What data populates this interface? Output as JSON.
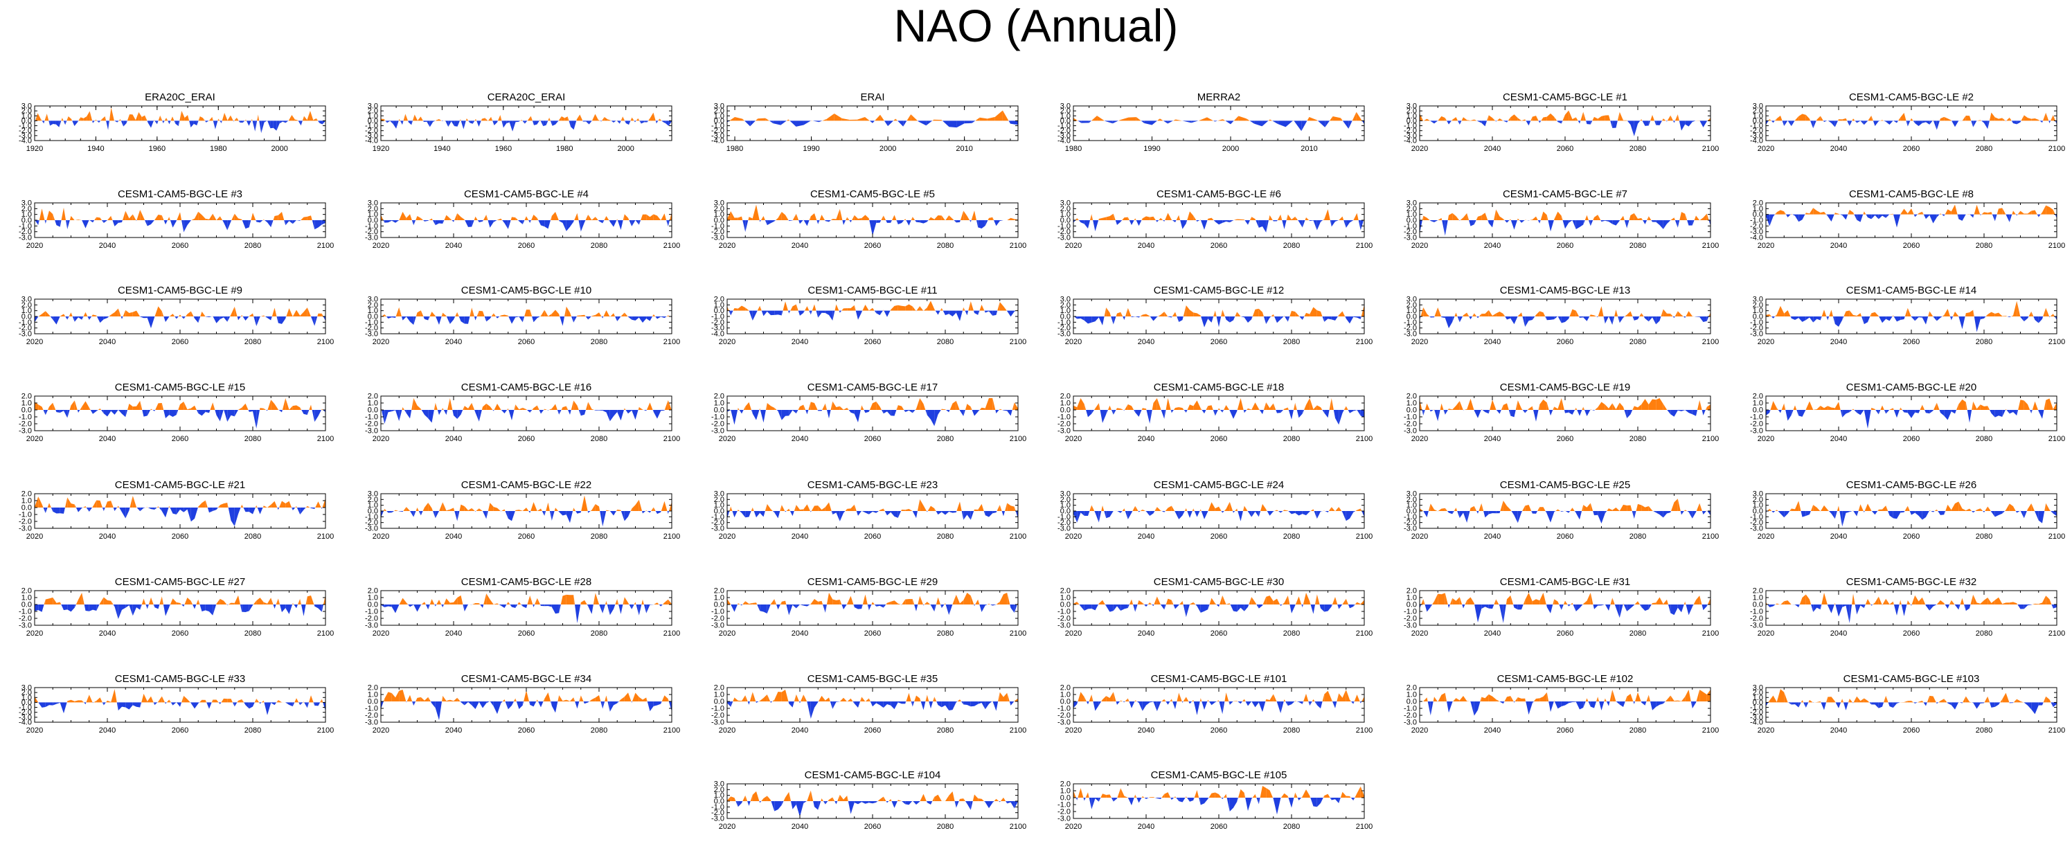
{
  "title": "NAO (Annual)",
  "colors": {
    "positive": "#ff7f0e",
    "negative": "#1f3fe0",
    "axis": "#000000"
  },
  "chart_data": {
    "type": "area",
    "title": "NAO (Annual)",
    "series_note_colors": "positive anomalies orange, negative anomalies blue",
    "panels": [
      {
        "name": "ERA20C_ERAI",
        "x0": 1920,
        "x1": 2015,
        "xticks": [
          "1920",
          "1940",
          "1960",
          "1980",
          "2000"
        ],
        "yticks": [
          "3.0",
          "2.0",
          "1.0",
          "0.0",
          "-1.0",
          "-2.0",
          "-3.0",
          "-4.0"
        ],
        "ylim": [
          -4,
          3
        ]
      },
      {
        "name": "CERA20C_ERAI",
        "x0": 1920,
        "x1": 2015,
        "xticks": [
          "1920",
          "1940",
          "1960",
          "1980",
          "2000"
        ],
        "yticks": [
          "3.0",
          "2.0",
          "1.0",
          "0.0",
          "-1.0",
          "-2.0",
          "-3.0",
          "-4.0"
        ],
        "ylim": [
          -4,
          3
        ]
      },
      {
        "name": "ERAI",
        "x0": 1979,
        "x1": 2017,
        "xticks": [
          "1980",
          "1990",
          "2000",
          "2010"
        ],
        "yticks": [
          "3.0",
          "2.0",
          "1.0",
          "0.0",
          "-1.0",
          "-2.0",
          "-3.0",
          "-4.0"
        ],
        "ylim": [
          -4,
          3
        ]
      },
      {
        "name": "MERRA2",
        "x0": 1980,
        "x1": 2017,
        "xticks": [
          "1980",
          "1990",
          "2000",
          "2010"
        ],
        "yticks": [
          "3.0",
          "2.0",
          "1.0",
          "0.0",
          "-1.0",
          "-2.0",
          "-3.0",
          "-4.0"
        ],
        "ylim": [
          -4,
          3
        ]
      },
      {
        "name": "CESM1-CAM5-BGC-LE #1",
        "x0": 2020,
        "x1": 2100,
        "xticks": [
          "2020",
          "2040",
          "2060",
          "2080",
          "2100"
        ],
        "yticks": [
          "3.0",
          "2.0",
          "1.0",
          "0.0",
          "-1.0",
          "-2.0",
          "-3.0",
          "-4.0"
        ],
        "ylim": [
          -4,
          3
        ]
      },
      {
        "name": "CESM1-CAM5-BGC-LE #2",
        "x0": 2020,
        "x1": 2100,
        "xticks": [
          "2020",
          "2040",
          "2060",
          "2080",
          "2100"
        ],
        "yticks": [
          "3.0",
          "2.0",
          "1.0",
          "0.0",
          "-1.0",
          "-2.0",
          "-3.0",
          "-4.0"
        ],
        "ylim": [
          -4,
          3
        ]
      },
      {
        "name": "CESM1-CAM5-BGC-LE #3",
        "x0": 2020,
        "x1": 2100,
        "xticks": [
          "2020",
          "2040",
          "2060",
          "2080",
          "2100"
        ],
        "yticks": [
          "3.0",
          "2.0",
          "1.0",
          "0.0",
          "-1.0",
          "-2.0",
          "-3.0"
        ],
        "ylim": [
          -3,
          3
        ]
      },
      {
        "name": "CESM1-CAM5-BGC-LE #4",
        "x0": 2020,
        "x1": 2100,
        "xticks": [
          "2020",
          "2040",
          "2060",
          "2080",
          "2100"
        ],
        "yticks": [
          "3.0",
          "2.0",
          "1.0",
          "0.0",
          "-1.0",
          "-2.0",
          "-3.0"
        ],
        "ylim": [
          -3,
          3
        ]
      },
      {
        "name": "CESM1-CAM5-BGC-LE #5",
        "x0": 2020,
        "x1": 2100,
        "xticks": [
          "2020",
          "2040",
          "2060",
          "2080",
          "2100"
        ],
        "yticks": [
          "3.0",
          "2.0",
          "1.0",
          "0.0",
          "-1.0",
          "-2.0",
          "-3.0"
        ],
        "ylim": [
          -3,
          3
        ]
      },
      {
        "name": "CESM1-CAM5-BGC-LE #6",
        "x0": 2020,
        "x1": 2100,
        "xticks": [
          "2020",
          "2040",
          "2060",
          "2080",
          "2100"
        ],
        "yticks": [
          "3.0",
          "2.0",
          "1.0",
          "0.0",
          "-1.0",
          "-2.0",
          "-3.0"
        ],
        "ylim": [
          -3,
          3
        ]
      },
      {
        "name": "CESM1-CAM5-BGC-LE #7",
        "x0": 2020,
        "x1": 2100,
        "xticks": [
          "2020",
          "2040",
          "2060",
          "2080",
          "2100"
        ],
        "yticks": [
          "3.0",
          "2.0",
          "1.0",
          "0.0",
          "-1.0",
          "-2.0",
          "-3.0"
        ],
        "ylim": [
          -3,
          3
        ]
      },
      {
        "name": "CESM1-CAM5-BGC-LE #8",
        "x0": 2020,
        "x1": 2100,
        "xticks": [
          "2020",
          "2040",
          "2060",
          "2080",
          "2100"
        ],
        "yticks": [
          "2.0",
          "1.0",
          "0.0",
          "-1.0",
          "-2.0",
          "-3.0",
          "-4.0"
        ],
        "ylim": [
          -4,
          2
        ]
      },
      {
        "name": "CESM1-CAM5-BGC-LE #9",
        "x0": 2020,
        "x1": 2100,
        "xticks": [
          "2020",
          "2040",
          "2060",
          "2080",
          "2100"
        ],
        "yticks": [
          "3.0",
          "2.0",
          "1.0",
          "0.0",
          "-1.0",
          "-2.0",
          "-3.0"
        ],
        "ylim": [
          -3,
          3
        ]
      },
      {
        "name": "CESM1-CAM5-BGC-LE #10",
        "x0": 2020,
        "x1": 2100,
        "xticks": [
          "2020",
          "2040",
          "2060",
          "2080",
          "2100"
        ],
        "yticks": [
          "3.0",
          "2.0",
          "1.0",
          "0.0",
          "-1.0",
          "-2.0",
          "-3.0"
        ],
        "ylim": [
          -3,
          3
        ]
      },
      {
        "name": "CESM1-CAM5-BGC-LE #11",
        "x0": 2020,
        "x1": 2100,
        "xticks": [
          "2020",
          "2040",
          "2060",
          "2080",
          "2100"
        ],
        "yticks": [
          "2.0",
          "1.0",
          "0.0",
          "-1.0",
          "-2.0",
          "-3.0",
          "-4.0"
        ],
        "ylim": [
          -4,
          2
        ]
      },
      {
        "name": "CESM1-CAM5-BGC-LE #12",
        "x0": 2020,
        "x1": 2100,
        "xticks": [
          "2020",
          "2040",
          "2060",
          "2080",
          "2100"
        ],
        "yticks": [
          "3.0",
          "2.0",
          "1.0",
          "0.0",
          "-1.0",
          "-2.0",
          "-3.0"
        ],
        "ylim": [
          -3,
          3
        ]
      },
      {
        "name": "CESM1-CAM5-BGC-LE #13",
        "x0": 2020,
        "x1": 2100,
        "xticks": [
          "2020",
          "2040",
          "2060",
          "2080",
          "2100"
        ],
        "yticks": [
          "3.0",
          "2.0",
          "1.0",
          "0.0",
          "-1.0",
          "-2.0",
          "-3.0"
        ],
        "ylim": [
          -3,
          3
        ]
      },
      {
        "name": "CESM1-CAM5-BGC-LE #14",
        "x0": 2020,
        "x1": 2100,
        "xticks": [
          "2020",
          "2040",
          "2060",
          "2080",
          "2100"
        ],
        "yticks": [
          "3.0",
          "2.0",
          "1.0",
          "0.0",
          "-1.0",
          "-2.0",
          "-3.0"
        ],
        "ylim": [
          -3,
          3
        ]
      },
      {
        "name": "CESM1-CAM5-BGC-LE #15",
        "x0": 2020,
        "x1": 2100,
        "xticks": [
          "2020",
          "2040",
          "2060",
          "2080",
          "2100"
        ],
        "yticks": [
          "2.0",
          "1.0",
          "0.0",
          "-1.0",
          "-2.0",
          "-3.0"
        ],
        "ylim": [
          -3,
          2
        ]
      },
      {
        "name": "CESM1-CAM5-BGC-LE #16",
        "x0": 2020,
        "x1": 2100,
        "xticks": [
          "2020",
          "2040",
          "2060",
          "2080",
          "2100"
        ],
        "yticks": [
          "2.0",
          "1.0",
          "0.0",
          "-1.0",
          "-2.0",
          "-3.0"
        ],
        "ylim": [
          -3,
          2
        ]
      },
      {
        "name": "CESM1-CAM5-BGC-LE #17",
        "x0": 2020,
        "x1": 2100,
        "xticks": [
          "2020",
          "2040",
          "2060",
          "2080",
          "2100"
        ],
        "yticks": [
          "2.0",
          "1.0",
          "0.0",
          "-1.0",
          "-2.0",
          "-3.0"
        ],
        "ylim": [
          -3,
          2
        ]
      },
      {
        "name": "CESM1-CAM5-BGC-LE #18",
        "x0": 2020,
        "x1": 2100,
        "xticks": [
          "2020",
          "2040",
          "2060",
          "2080",
          "2100"
        ],
        "yticks": [
          "2.0",
          "1.0",
          "0.0",
          "-1.0",
          "-2.0",
          "-3.0"
        ],
        "ylim": [
          -3,
          2
        ]
      },
      {
        "name": "CESM1-CAM5-BGC-LE #19",
        "x0": 2020,
        "x1": 2100,
        "xticks": [
          "2020",
          "2040",
          "2060",
          "2080",
          "2100"
        ],
        "yticks": [
          "2.0",
          "1.0",
          "0.0",
          "-1.0",
          "-2.0",
          "-3.0"
        ],
        "ylim": [
          -3,
          2
        ]
      },
      {
        "name": "CESM1-CAM5-BGC-LE #20",
        "x0": 2020,
        "x1": 2100,
        "xticks": [
          "2020",
          "2040",
          "2060",
          "2080",
          "2100"
        ],
        "yticks": [
          "2.0",
          "1.0",
          "0.0",
          "-1.0",
          "-2.0",
          "-3.0"
        ],
        "ylim": [
          -3,
          2
        ]
      },
      {
        "name": "CESM1-CAM5-BGC-LE #21",
        "x0": 2020,
        "x1": 2100,
        "xticks": [
          "2020",
          "2040",
          "2060",
          "2080",
          "2100"
        ],
        "yticks": [
          "2.0",
          "1.0",
          "0.0",
          "-1.0",
          "-2.0",
          "-3.0"
        ],
        "ylim": [
          -3,
          2
        ]
      },
      {
        "name": "CESM1-CAM5-BGC-LE #22",
        "x0": 2020,
        "x1": 2100,
        "xticks": [
          "2020",
          "2040",
          "2060",
          "2080",
          "2100"
        ],
        "yticks": [
          "3.0",
          "2.0",
          "1.0",
          "0.0",
          "-1.0",
          "-2.0",
          "-3.0"
        ],
        "ylim": [
          -3,
          3
        ]
      },
      {
        "name": "CESM1-CAM5-BGC-LE #23",
        "x0": 2020,
        "x1": 2100,
        "xticks": [
          "2020",
          "2040",
          "2060",
          "2080",
          "2100"
        ],
        "yticks": [
          "3.0",
          "2.0",
          "1.0",
          "0.0",
          "-1.0",
          "-2.0",
          "-3.0"
        ],
        "ylim": [
          -3,
          3
        ]
      },
      {
        "name": "CESM1-CAM5-BGC-LE #24",
        "x0": 2020,
        "x1": 2100,
        "xticks": [
          "2020",
          "2040",
          "2060",
          "2080",
          "2100"
        ],
        "yticks": [
          "3.0",
          "2.0",
          "1.0",
          "0.0",
          "-1.0",
          "-2.0",
          "-3.0"
        ],
        "ylim": [
          -3,
          3
        ]
      },
      {
        "name": "CESM1-CAM5-BGC-LE #25",
        "x0": 2020,
        "x1": 2100,
        "xticks": [
          "2020",
          "2040",
          "2060",
          "2080",
          "2100"
        ],
        "yticks": [
          "3.0",
          "2.0",
          "1.0",
          "0.0",
          "-1.0",
          "-2.0",
          "-3.0"
        ],
        "ylim": [
          -3,
          3
        ]
      },
      {
        "name": "CESM1-CAM5-BGC-LE #26",
        "x0": 2020,
        "x1": 2100,
        "xticks": [
          "2020",
          "2040",
          "2060",
          "2080",
          "2100"
        ],
        "yticks": [
          "3.0",
          "2.0",
          "1.0",
          "0.0",
          "-1.0",
          "-2.0",
          "-3.0"
        ],
        "ylim": [
          -3,
          3
        ]
      },
      {
        "name": "CESM1-CAM5-BGC-LE #27",
        "x0": 2020,
        "x1": 2100,
        "xticks": [
          "2020",
          "2040",
          "2060",
          "2080",
          "2100"
        ],
        "yticks": [
          "2.0",
          "1.0",
          "0.0",
          "-1.0",
          "-2.0",
          "-3.0"
        ],
        "ylim": [
          -3,
          2
        ]
      },
      {
        "name": "CESM1-CAM5-BGC-LE #28",
        "x0": 2020,
        "x1": 2100,
        "xticks": [
          "2020",
          "2040",
          "2060",
          "2080",
          "2100"
        ],
        "yticks": [
          "2.0",
          "1.0",
          "0.0",
          "-1.0",
          "-2.0",
          "-3.0"
        ],
        "ylim": [
          -3,
          2
        ]
      },
      {
        "name": "CESM1-CAM5-BGC-LE #29",
        "x0": 2020,
        "x1": 2100,
        "xticks": [
          "2020",
          "2040",
          "2060",
          "2080",
          "2100"
        ],
        "yticks": [
          "2.0",
          "1.0",
          "0.0",
          "-1.0",
          "-2.0",
          "-3.0"
        ],
        "ylim": [
          -3,
          2
        ]
      },
      {
        "name": "CESM1-CAM5-BGC-LE #30",
        "x0": 2020,
        "x1": 2100,
        "xticks": [
          "2020",
          "2040",
          "2060",
          "2080",
          "2100"
        ],
        "yticks": [
          "2.0",
          "1.0",
          "0.0",
          "-1.0",
          "-2.0",
          "-3.0"
        ],
        "ylim": [
          -3,
          2
        ]
      },
      {
        "name": "CESM1-CAM5-BGC-LE #31",
        "x0": 2020,
        "x1": 2100,
        "xticks": [
          "2020",
          "2040",
          "2060",
          "2080",
          "2100"
        ],
        "yticks": [
          "2.0",
          "1.0",
          "0.0",
          "-1.0",
          "-2.0",
          "-3.0"
        ],
        "ylim": [
          -3,
          2
        ]
      },
      {
        "name": "CESM1-CAM5-BGC-LE #32",
        "x0": 2020,
        "x1": 2100,
        "xticks": [
          "2020",
          "2040",
          "2060",
          "2080",
          "2100"
        ],
        "yticks": [
          "2.0",
          "1.0",
          "0.0",
          "-1.0",
          "-2.0",
          "-3.0"
        ],
        "ylim": [
          -3,
          2
        ]
      },
      {
        "name": "CESM1-CAM5-BGC-LE #33",
        "x0": 2020,
        "x1": 2100,
        "xticks": [
          "2020",
          "2040",
          "2060",
          "2080",
          "2100"
        ],
        "yticks": [
          "3.0",
          "2.0",
          "1.0",
          "0.0",
          "-1.0",
          "-2.0",
          "-3.0",
          "-4.0"
        ],
        "ylim": [
          -4,
          3
        ]
      },
      {
        "name": "CESM1-CAM5-BGC-LE #34",
        "x0": 2020,
        "x1": 2100,
        "xticks": [
          "2020",
          "2040",
          "2060",
          "2080",
          "2100"
        ],
        "yticks": [
          "2.0",
          "1.0",
          "0.0",
          "-1.0",
          "-2.0",
          "-3.0"
        ],
        "ylim": [
          -3,
          2
        ]
      },
      {
        "name": "CESM1-CAM5-BGC-LE #35",
        "x0": 2020,
        "x1": 2100,
        "xticks": [
          "2020",
          "2040",
          "2060",
          "2080",
          "2100"
        ],
        "yticks": [
          "2.0",
          "1.0",
          "0.0",
          "-1.0",
          "-2.0",
          "-3.0"
        ],
        "ylim": [
          -3,
          2
        ]
      },
      {
        "name": "CESM1-CAM5-BGC-LE #101",
        "x0": 2020,
        "x1": 2100,
        "xticks": [
          "2020",
          "2040",
          "2060",
          "2080",
          "2100"
        ],
        "yticks": [
          "2.0",
          "1.0",
          "0.0",
          "-1.0",
          "-2.0",
          "-3.0"
        ],
        "ylim": [
          -3,
          2
        ]
      },
      {
        "name": "CESM1-CAM5-BGC-LE #102",
        "x0": 2020,
        "x1": 2100,
        "xticks": [
          "2020",
          "2040",
          "2060",
          "2080",
          "2100"
        ],
        "yticks": [
          "2.0",
          "1.0",
          "0.0",
          "-1.0",
          "-2.0",
          "-3.0"
        ],
        "ylim": [
          -3,
          2
        ]
      },
      {
        "name": "CESM1-CAM5-BGC-LE #103",
        "x0": 2020,
        "x1": 2100,
        "xticks": [
          "2020",
          "2040",
          "2060",
          "2080",
          "2100"
        ],
        "yticks": [
          "3.0",
          "2.0",
          "1.0",
          "0.0",
          "-1.0",
          "-2.0",
          "-3.0",
          "-4.0"
        ],
        "ylim": [
          -4,
          3
        ]
      },
      {
        "name": "CESM1-CAM5-BGC-LE #104",
        "x0": 2020,
        "x1": 2100,
        "xticks": [
          "2020",
          "2040",
          "2060",
          "2080",
          "2100"
        ],
        "yticks": [
          "3.0",
          "2.0",
          "1.0",
          "0.0",
          "-1.0",
          "-2.0",
          "-3.0"
        ],
        "ylim": [
          -3,
          3
        ]
      },
      {
        "name": "CESM1-CAM5-BGC-LE #105",
        "x0": 2020,
        "x1": 2100,
        "xticks": [
          "2020",
          "2040",
          "2060",
          "2080",
          "2100"
        ],
        "yticks": [
          "2.0",
          "1.0",
          "0.0",
          "-1.0",
          "-2.0",
          "-3.0"
        ],
        "ylim": [
          -3,
          2
        ]
      }
    ]
  }
}
